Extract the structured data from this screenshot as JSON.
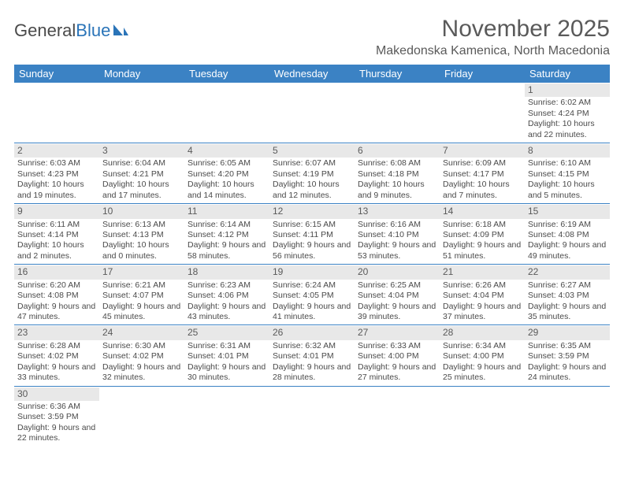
{
  "logo": {
    "text1": "General",
    "text2": "Blue"
  },
  "title": "November 2025",
  "subtitle": "Makedonska Kamenica, North Macedonia",
  "colors": {
    "header_bg": "#3b82c4",
    "header_fg": "#ffffff",
    "daynum_bg": "#e8e8e8",
    "border": "#3b82c4",
    "text": "#4a4a4a"
  },
  "weekdays": [
    "Sunday",
    "Monday",
    "Tuesday",
    "Wednesday",
    "Thursday",
    "Friday",
    "Saturday"
  ],
  "weeks": [
    [
      {
        "empty": true
      },
      {
        "empty": true
      },
      {
        "empty": true
      },
      {
        "empty": true
      },
      {
        "empty": true
      },
      {
        "empty": true
      },
      {
        "day": "1",
        "sunrise": "Sunrise: 6:02 AM",
        "sunset": "Sunset: 4:24 PM",
        "daylight": "Daylight: 10 hours and 22 minutes."
      }
    ],
    [
      {
        "day": "2",
        "sunrise": "Sunrise: 6:03 AM",
        "sunset": "Sunset: 4:23 PM",
        "daylight": "Daylight: 10 hours and 19 minutes."
      },
      {
        "day": "3",
        "sunrise": "Sunrise: 6:04 AM",
        "sunset": "Sunset: 4:21 PM",
        "daylight": "Daylight: 10 hours and 17 minutes."
      },
      {
        "day": "4",
        "sunrise": "Sunrise: 6:05 AM",
        "sunset": "Sunset: 4:20 PM",
        "daylight": "Daylight: 10 hours and 14 minutes."
      },
      {
        "day": "5",
        "sunrise": "Sunrise: 6:07 AM",
        "sunset": "Sunset: 4:19 PM",
        "daylight": "Daylight: 10 hours and 12 minutes."
      },
      {
        "day": "6",
        "sunrise": "Sunrise: 6:08 AM",
        "sunset": "Sunset: 4:18 PM",
        "daylight": "Daylight: 10 hours and 9 minutes."
      },
      {
        "day": "7",
        "sunrise": "Sunrise: 6:09 AM",
        "sunset": "Sunset: 4:17 PM",
        "daylight": "Daylight: 10 hours and 7 minutes."
      },
      {
        "day": "8",
        "sunrise": "Sunrise: 6:10 AM",
        "sunset": "Sunset: 4:15 PM",
        "daylight": "Daylight: 10 hours and 5 minutes."
      }
    ],
    [
      {
        "day": "9",
        "sunrise": "Sunrise: 6:11 AM",
        "sunset": "Sunset: 4:14 PM",
        "daylight": "Daylight: 10 hours and 2 minutes."
      },
      {
        "day": "10",
        "sunrise": "Sunrise: 6:13 AM",
        "sunset": "Sunset: 4:13 PM",
        "daylight": "Daylight: 10 hours and 0 minutes."
      },
      {
        "day": "11",
        "sunrise": "Sunrise: 6:14 AM",
        "sunset": "Sunset: 4:12 PM",
        "daylight": "Daylight: 9 hours and 58 minutes."
      },
      {
        "day": "12",
        "sunrise": "Sunrise: 6:15 AM",
        "sunset": "Sunset: 4:11 PM",
        "daylight": "Daylight: 9 hours and 56 minutes."
      },
      {
        "day": "13",
        "sunrise": "Sunrise: 6:16 AM",
        "sunset": "Sunset: 4:10 PM",
        "daylight": "Daylight: 9 hours and 53 minutes."
      },
      {
        "day": "14",
        "sunrise": "Sunrise: 6:18 AM",
        "sunset": "Sunset: 4:09 PM",
        "daylight": "Daylight: 9 hours and 51 minutes."
      },
      {
        "day": "15",
        "sunrise": "Sunrise: 6:19 AM",
        "sunset": "Sunset: 4:08 PM",
        "daylight": "Daylight: 9 hours and 49 minutes."
      }
    ],
    [
      {
        "day": "16",
        "sunrise": "Sunrise: 6:20 AM",
        "sunset": "Sunset: 4:08 PM",
        "daylight": "Daylight: 9 hours and 47 minutes."
      },
      {
        "day": "17",
        "sunrise": "Sunrise: 6:21 AM",
        "sunset": "Sunset: 4:07 PM",
        "daylight": "Daylight: 9 hours and 45 minutes."
      },
      {
        "day": "18",
        "sunrise": "Sunrise: 6:23 AM",
        "sunset": "Sunset: 4:06 PM",
        "daylight": "Daylight: 9 hours and 43 minutes."
      },
      {
        "day": "19",
        "sunrise": "Sunrise: 6:24 AM",
        "sunset": "Sunset: 4:05 PM",
        "daylight": "Daylight: 9 hours and 41 minutes."
      },
      {
        "day": "20",
        "sunrise": "Sunrise: 6:25 AM",
        "sunset": "Sunset: 4:04 PM",
        "daylight": "Daylight: 9 hours and 39 minutes."
      },
      {
        "day": "21",
        "sunrise": "Sunrise: 6:26 AM",
        "sunset": "Sunset: 4:04 PM",
        "daylight": "Daylight: 9 hours and 37 minutes."
      },
      {
        "day": "22",
        "sunrise": "Sunrise: 6:27 AM",
        "sunset": "Sunset: 4:03 PM",
        "daylight": "Daylight: 9 hours and 35 minutes."
      }
    ],
    [
      {
        "day": "23",
        "sunrise": "Sunrise: 6:28 AM",
        "sunset": "Sunset: 4:02 PM",
        "daylight": "Daylight: 9 hours and 33 minutes."
      },
      {
        "day": "24",
        "sunrise": "Sunrise: 6:30 AM",
        "sunset": "Sunset: 4:02 PM",
        "daylight": "Daylight: 9 hours and 32 minutes."
      },
      {
        "day": "25",
        "sunrise": "Sunrise: 6:31 AM",
        "sunset": "Sunset: 4:01 PM",
        "daylight": "Daylight: 9 hours and 30 minutes."
      },
      {
        "day": "26",
        "sunrise": "Sunrise: 6:32 AM",
        "sunset": "Sunset: 4:01 PM",
        "daylight": "Daylight: 9 hours and 28 minutes."
      },
      {
        "day": "27",
        "sunrise": "Sunrise: 6:33 AM",
        "sunset": "Sunset: 4:00 PM",
        "daylight": "Daylight: 9 hours and 27 minutes."
      },
      {
        "day": "28",
        "sunrise": "Sunrise: 6:34 AM",
        "sunset": "Sunset: 4:00 PM",
        "daylight": "Daylight: 9 hours and 25 minutes."
      },
      {
        "day": "29",
        "sunrise": "Sunrise: 6:35 AM",
        "sunset": "Sunset: 3:59 PM",
        "daylight": "Daylight: 9 hours and 24 minutes."
      }
    ],
    [
      {
        "day": "30",
        "sunrise": "Sunrise: 6:36 AM",
        "sunset": "Sunset: 3:59 PM",
        "daylight": "Daylight: 9 hours and 22 minutes."
      },
      {
        "empty": true
      },
      {
        "empty": true
      },
      {
        "empty": true
      },
      {
        "empty": true
      },
      {
        "empty": true
      },
      {
        "empty": true
      }
    ]
  ]
}
